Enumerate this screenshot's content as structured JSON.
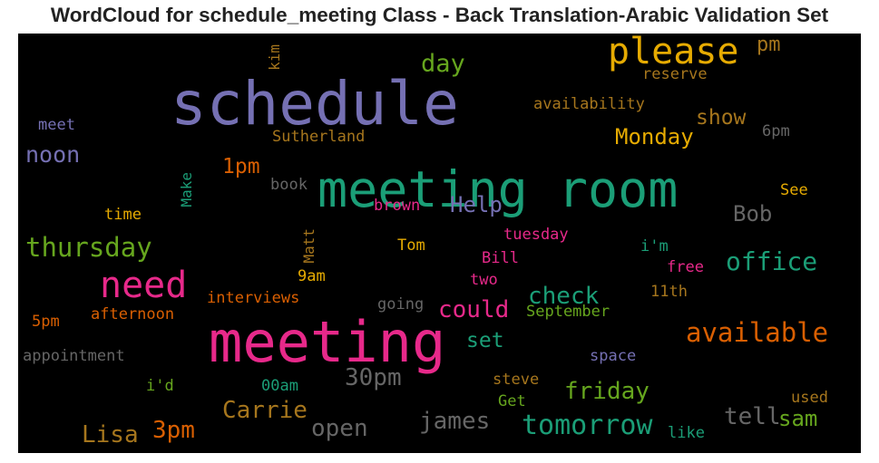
{
  "chart_data": {
    "type": "wordcloud",
    "title": "WordCloud for schedule_meeting Class - Back Translation-Arabic Validation Set",
    "background": "#000000",
    "words": [
      {
        "text": "schedule",
        "color": "#7570b3"
      },
      {
        "text": "meeting room",
        "color": "#1b9e77"
      },
      {
        "text": "meeting",
        "color": "#e7298a"
      },
      {
        "text": "please",
        "color": "#e6ab02"
      },
      {
        "text": "need",
        "color": "#e7298a"
      },
      {
        "text": "day",
        "color": "#66a61e"
      },
      {
        "text": "pm",
        "color": "#a6761d"
      },
      {
        "text": "kim",
        "color": "#a6761d"
      },
      {
        "text": "reserve",
        "color": "#a6761d"
      },
      {
        "text": "availability",
        "color": "#a6761d"
      },
      {
        "text": "show",
        "color": "#a6761d"
      },
      {
        "text": "meet",
        "color": "#7570b3"
      },
      {
        "text": "Sutherland",
        "color": "#a6761d"
      },
      {
        "text": "Monday",
        "color": "#e6ab02"
      },
      {
        "text": "6pm",
        "color": "#666666"
      },
      {
        "text": "noon",
        "color": "#7570b3"
      },
      {
        "text": "1pm",
        "color": "#d95f02"
      },
      {
        "text": "Make",
        "color": "#1b9e77"
      },
      {
        "text": "book",
        "color": "#666666"
      },
      {
        "text": "See",
        "color": "#e6ab02"
      },
      {
        "text": "time",
        "color": "#e6ab02"
      },
      {
        "text": "brown",
        "color": "#e7298a"
      },
      {
        "text": "Help",
        "color": "#7570b3"
      },
      {
        "text": "Bob",
        "color": "#666666"
      },
      {
        "text": "thursday",
        "color": "#66a61e"
      },
      {
        "text": "Matt",
        "color": "#a6761d"
      },
      {
        "text": "tuesday",
        "color": "#e7298a"
      },
      {
        "text": "Tom",
        "color": "#e6ab02"
      },
      {
        "text": "i'm",
        "color": "#1b9e77"
      },
      {
        "text": "Bill",
        "color": "#e7298a"
      },
      {
        "text": "office",
        "color": "#1b9e77"
      },
      {
        "text": "free",
        "color": "#e7298a"
      },
      {
        "text": "9am",
        "color": "#e6ab02"
      },
      {
        "text": "two",
        "color": "#e7298a"
      },
      {
        "text": "interviews",
        "color": "#d95f02"
      },
      {
        "text": "check",
        "color": "#1b9e77"
      },
      {
        "text": "11th",
        "color": "#a6761d"
      },
      {
        "text": "going",
        "color": "#666666"
      },
      {
        "text": "could",
        "color": "#e7298a"
      },
      {
        "text": "September",
        "color": "#66a61e"
      },
      {
        "text": "5pm",
        "color": "#d95f02"
      },
      {
        "text": "afternoon",
        "color": "#d95f02"
      },
      {
        "text": "available",
        "color": "#d95f02"
      },
      {
        "text": "set",
        "color": "#1b9e77"
      },
      {
        "text": "appointment",
        "color": "#666666"
      },
      {
        "text": "space",
        "color": "#7570b3"
      },
      {
        "text": "30pm",
        "color": "#666666"
      },
      {
        "text": "steve",
        "color": "#a6761d"
      },
      {
        "text": "i'd",
        "color": "#66a61e"
      },
      {
        "text": "00am",
        "color": "#1b9e77"
      },
      {
        "text": "friday",
        "color": "#66a61e"
      },
      {
        "text": "used",
        "color": "#a6761d"
      },
      {
        "text": "Get",
        "color": "#66a61e"
      },
      {
        "text": "Carrie",
        "color": "#a6761d"
      },
      {
        "text": "tell",
        "color": "#666666"
      },
      {
        "text": "sam",
        "color": "#66a61e"
      },
      {
        "text": "james",
        "color": "#666666"
      },
      {
        "text": "tomorrow",
        "color": "#1b9e77"
      },
      {
        "text": "open",
        "color": "#666666"
      },
      {
        "text": "3pm",
        "color": "#d95f02"
      },
      {
        "text": "Lisa",
        "color": "#a6761d"
      },
      {
        "text": "like",
        "color": "#1b9e77"
      }
    ]
  }
}
